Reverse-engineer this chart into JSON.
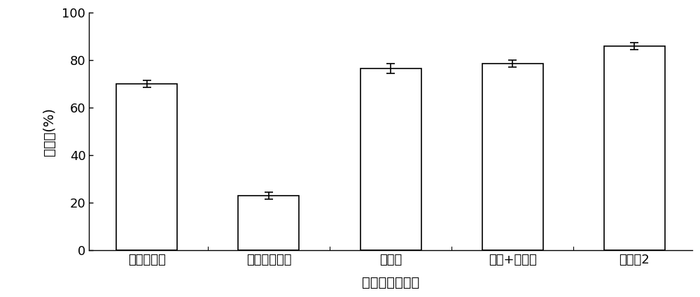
{
  "categories": [
    "果胶酶酵解",
    "纤维素酶酵解",
    "复合酶",
    "微波+复合酶",
    "实施例2"
  ],
  "values": [
    70.0,
    23.0,
    76.5,
    78.5,
    86.0
  ],
  "errors": [
    1.5,
    1.5,
    2.0,
    1.5,
    1.5
  ],
  "bar_color": "#ffffff",
  "bar_edgecolor": "#000000",
  "bar_linewidth": 1.2,
  "errorbar_color": "#000000",
  "errorbar_capsize": 4,
  "errorbar_linewidth": 1.2,
  "ylabel": "出汁率(%)",
  "xlabel": "洋葱渣处理方式",
  "ylim": [
    0,
    100
  ],
  "yticks": [
    0,
    20,
    40,
    60,
    80,
    100
  ],
  "bar_width": 0.5,
  "figsize": [
    10.0,
    4.25
  ],
  "dpi": 100,
  "ylabel_fontsize": 14,
  "xlabel_fontsize": 14,
  "tick_fontsize": 13,
  "spine_linewidth": 1.0
}
